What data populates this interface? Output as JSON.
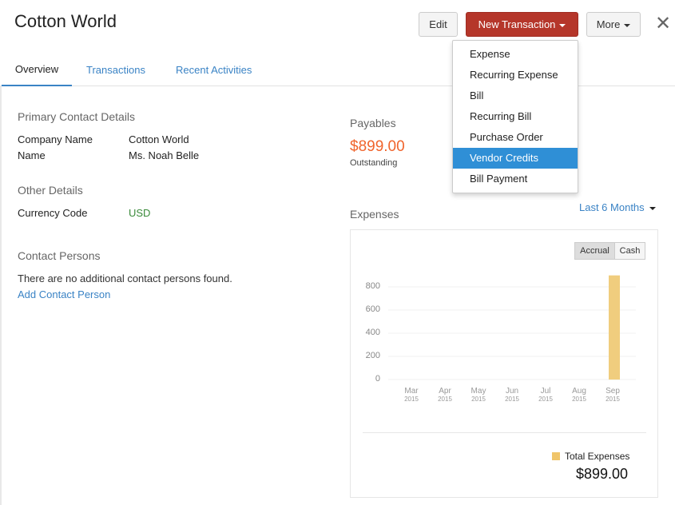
{
  "header": {
    "title": "Cotton World",
    "edit": "Edit",
    "new_transaction": "New Transaction",
    "more": "More",
    "close_icon": "close-icon"
  },
  "tabs": [
    "Overview",
    "Transactions",
    "Recent Activities"
  ],
  "primary": {
    "heading": "Primary Contact Details",
    "rows": [
      {
        "label": "Company Name",
        "value": "Cotton World"
      },
      {
        "label": "Name",
        "value": "Ms. Noah Belle"
      }
    ]
  },
  "other": {
    "heading": "Other Details",
    "label": "Currency Code",
    "value": "USD"
  },
  "contacts": {
    "heading": "Contact Persons",
    "empty": "There are no additional contact persons found.",
    "add": "Add Contact Person"
  },
  "payables": {
    "heading": "Payables",
    "amount": "$899.00",
    "sub": "Outstanding"
  },
  "menu": {
    "items": [
      "Expense",
      "Recurring Expense",
      "Bill",
      "Recurring Bill",
      "Purchase Order",
      "Vendor Credits",
      "Bill Payment"
    ],
    "selected": "Vendor Credits"
  },
  "expenses": {
    "heading": "Expenses",
    "period": "Last 6 Months",
    "toggle": [
      "Accrual",
      "Cash"
    ],
    "active_toggle": "Accrual",
    "legend": "Total Expenses",
    "total": "$899.00"
  },
  "chart_data": {
    "type": "bar",
    "categories": [
      "Mar 2015",
      "Apr 2015",
      "May 2015",
      "Jun 2015",
      "Jul 2015",
      "Aug 2015",
      "Sep 2015"
    ],
    "month_labels": [
      "Mar",
      "Apr",
      "May",
      "Jun",
      "Jul",
      "Aug",
      "Sep"
    ],
    "year_labels": [
      "2015",
      "2015",
      "2015",
      "2015",
      "2015",
      "2015",
      "2015"
    ],
    "series": [
      {
        "name": "Total Expenses",
        "values": [
          0,
          0,
          0,
          0,
          0,
          0,
          899
        ]
      }
    ],
    "yticks": [
      "0",
      "200",
      "400",
      "600",
      "800"
    ],
    "ylim": [
      0,
      900
    ],
    "color": "#f0cd7e",
    "grid": true
  }
}
